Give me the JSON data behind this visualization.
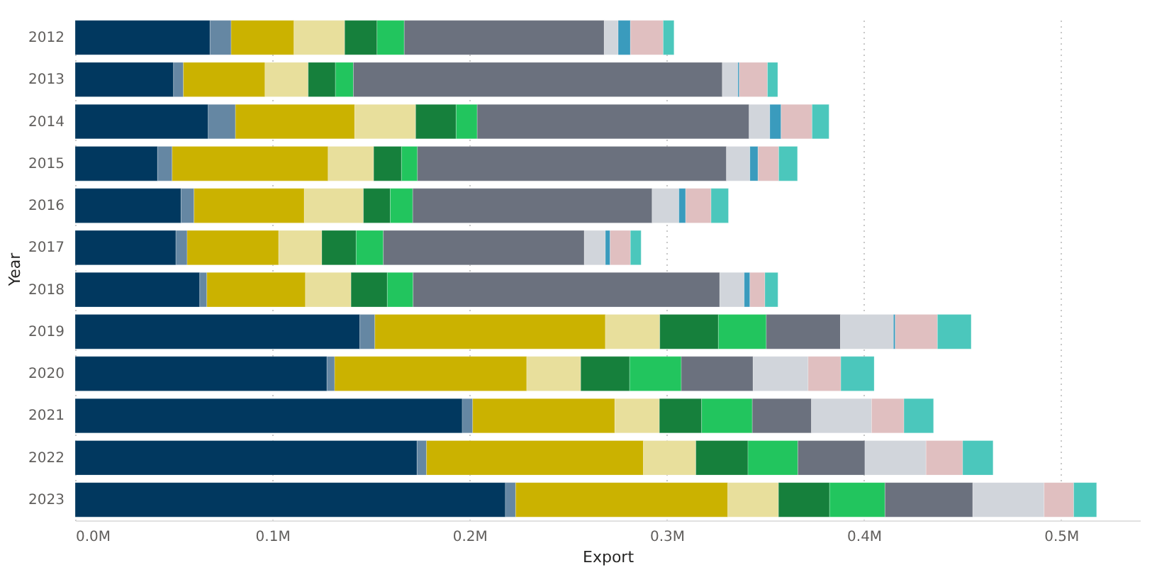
{
  "chart_data": {
    "type": "bar",
    "orientation": "horizontal",
    "stacked": true,
    "xlabel": "Export",
    "ylabel": "Year",
    "grid": "x",
    "legend": false,
    "categories": [
      "2012",
      "2013",
      "2014",
      "2015",
      "2016",
      "2017",
      "2018",
      "2019",
      "2020",
      "2021",
      "2022",
      "2023"
    ],
    "xlim": [
      0,
      0.54
    ],
    "xticks": [
      {
        "value": 0,
        "label": "0.0M"
      },
      {
        "value": 0.1,
        "label": "0.1M"
      },
      {
        "value": 0.2,
        "label": "0.2M"
      },
      {
        "value": 0.3,
        "label": "0.3M"
      },
      {
        "value": 0.4,
        "label": "0.4M"
      },
      {
        "value": 0.5,
        "label": "0.5M"
      }
    ],
    "series": [
      {
        "color": "#01385f",
        "values": [
          0.0684,
          0.0499,
          0.0675,
          0.0418,
          0.0537,
          0.0511,
          0.0632,
          0.1444,
          0.1277,
          0.1963,
          0.1734,
          0.2182
        ]
      },
      {
        "color": "#6587a3",
        "values": [
          0.0107,
          0.005,
          0.0138,
          0.0074,
          0.0066,
          0.0057,
          0.0036,
          0.0076,
          0.0039,
          0.0053,
          0.0048,
          0.0052
        ]
      },
      {
        "color": "#cbb200",
        "values": [
          0.0319,
          0.0414,
          0.0605,
          0.0791,
          0.0559,
          0.0464,
          0.05,
          0.1169,
          0.0974,
          0.0721,
          0.11,
          0.1076
        ]
      },
      {
        "color": "#e8df9c",
        "values": [
          0.0257,
          0.0219,
          0.0309,
          0.0231,
          0.03,
          0.0219,
          0.0231,
          0.0276,
          0.0274,
          0.0226,
          0.0266,
          0.0257
        ]
      },
      {
        "color": "#16803c",
        "values": [
          0.0164,
          0.0138,
          0.0205,
          0.0141,
          0.0136,
          0.0174,
          0.0184,
          0.0297,
          0.0248,
          0.0214,
          0.0264,
          0.0259
        ]
      },
      {
        "color": "#22c55e",
        "values": [
          0.0138,
          0.0091,
          0.0107,
          0.0081,
          0.0114,
          0.0138,
          0.0131,
          0.0243,
          0.0262,
          0.0257,
          0.0253,
          0.0281
        ]
      },
      {
        "color": "#6b717e",
        "values": [
          0.1014,
          0.1871,
          0.1379,
          0.1567,
          0.1214,
          0.1019,
          0.1555,
          0.0376,
          0.0364,
          0.03,
          0.034,
          0.0445
        ]
      },
      {
        "color": "#d1d5db",
        "values": [
          0.0071,
          0.0079,
          0.0105,
          0.0119,
          0.0136,
          0.0107,
          0.0124,
          0.0269,
          0.0279,
          0.0305,
          0.031,
          0.0362
        ]
      },
      {
        "color": "#3a9bbd",
        "values": [
          0.0062,
          0.0007,
          0.0057,
          0.0041,
          0.0034,
          0.0024,
          0.0029,
          0.0009,
          null,
          null,
          null,
          null
        ]
      },
      {
        "color": "#e0bfc0",
        "values": [
          0.0166,
          0.0143,
          0.0157,
          0.0105,
          0.0129,
          0.0103,
          0.0076,
          0.0214,
          0.0166,
          0.0164,
          0.0186,
          0.015
        ]
      },
      {
        "color": "#4bc7bc",
        "values": [
          0.0055,
          0.0052,
          0.0086,
          0.0095,
          0.0088,
          0.0054,
          0.0066,
          0.0171,
          0.0169,
          0.015,
          0.0154,
          0.0116
        ]
      }
    ]
  }
}
